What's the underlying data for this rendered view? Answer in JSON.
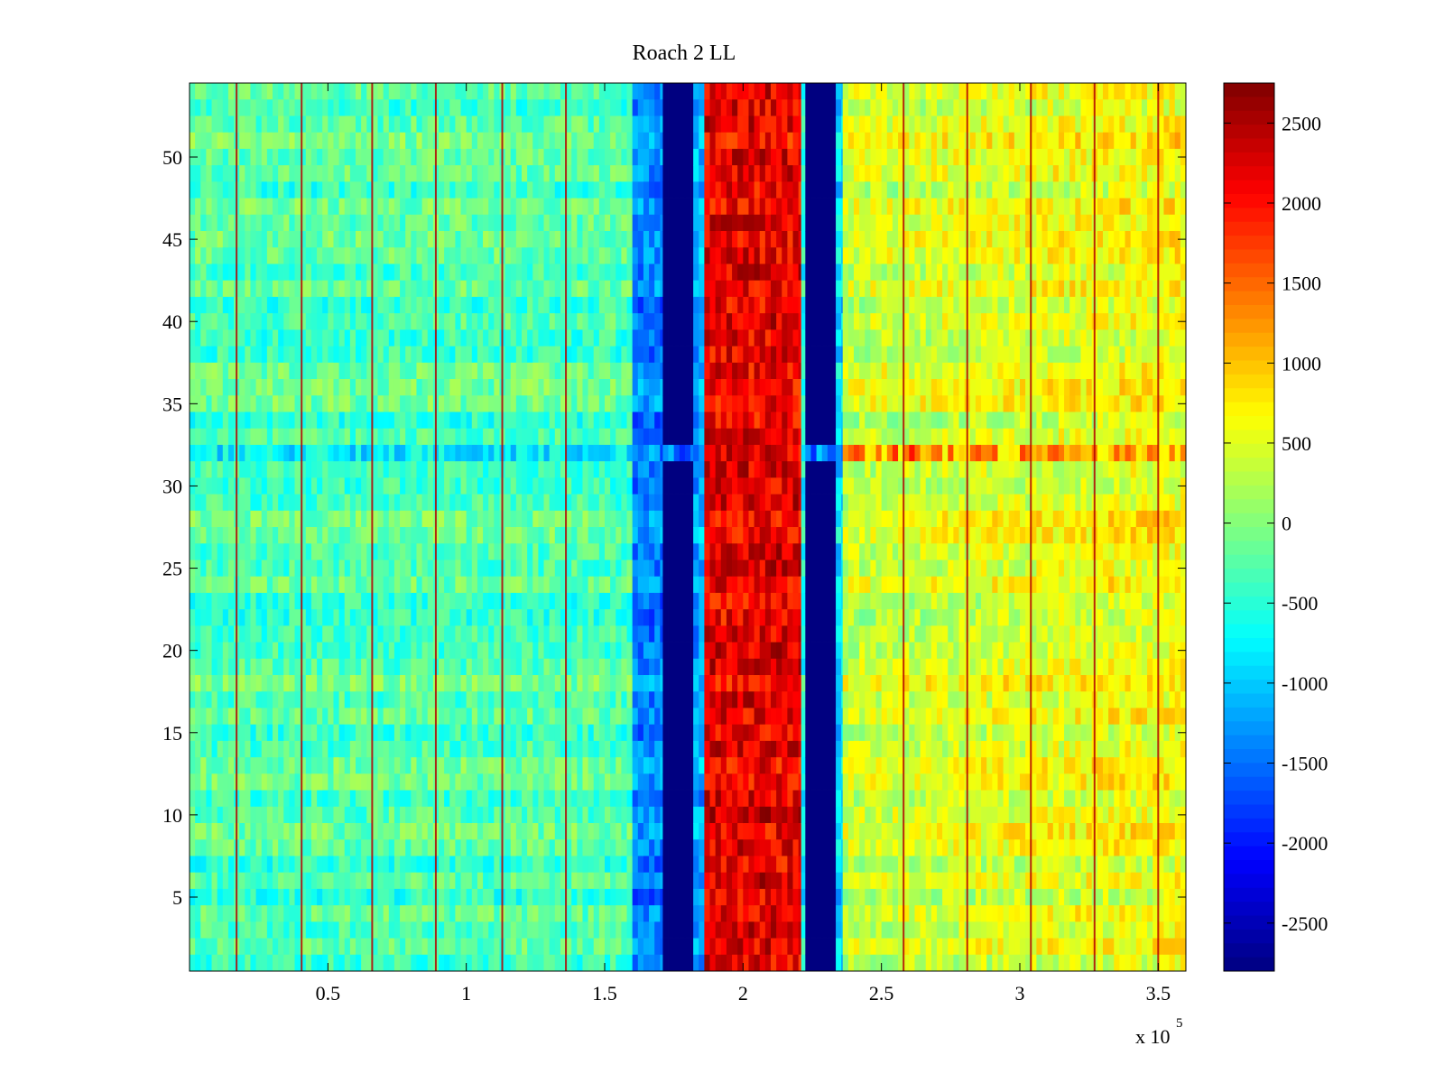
{
  "chart_data": {
    "type": "heatmap",
    "title": "Roach 2 LL",
    "xlabel": "",
    "ylabel": "",
    "x_range": [
      0,
      360000
    ],
    "y_range": [
      0.5,
      54.5
    ],
    "x_ticks": [
      {
        "value": 50000,
        "label": "0.5"
      },
      {
        "value": 100000,
        "label": "1"
      },
      {
        "value": 150000,
        "label": "1.5"
      },
      {
        "value": 200000,
        "label": "2"
      },
      {
        "value": 250000,
        "label": "2.5"
      },
      {
        "value": 300000,
        "label": "3"
      },
      {
        "value": 350000,
        "label": "3.5"
      }
    ],
    "x_multiplier_label": "x 10",
    "x_multiplier_exponent": "5",
    "y_ticks": [
      {
        "value": 5,
        "label": "5"
      },
      {
        "value": 10,
        "label": "10"
      },
      {
        "value": 15,
        "label": "15"
      },
      {
        "value": 20,
        "label": "20"
      },
      {
        "value": 25,
        "label": "25"
      },
      {
        "value": 30,
        "label": "30"
      },
      {
        "value": 35,
        "label": "35"
      },
      {
        "value": 40,
        "label": "40"
      },
      {
        "value": 45,
        "label": "45"
      },
      {
        "value": 50,
        "label": "50"
      }
    ],
    "colormap": "jet",
    "color_range": [
      -2800,
      2750
    ],
    "colorbar_ticks": [
      {
        "value": 2500,
        "label": "2500"
      },
      {
        "value": 2000,
        "label": "2000"
      },
      {
        "value": 1500,
        "label": "1500"
      },
      {
        "value": 1000,
        "label": "1000"
      },
      {
        "value": 500,
        "label": "500"
      },
      {
        "value": 0,
        "label": "0"
      },
      {
        "value": -500,
        "label": "-500"
      },
      {
        "value": -1000,
        "label": "-1000"
      },
      {
        "value": -1500,
        "label": "-1500"
      },
      {
        "value": -2000,
        "label": "-2000"
      },
      {
        "value": -2500,
        "label": "-2500"
      }
    ],
    "rows": 54,
    "bands": [
      {
        "x_start": 0,
        "x_end": 160000,
        "level": -300
      },
      {
        "x_start": 160000,
        "x_end": 171000,
        "level": -1400
      },
      {
        "x_start": 171000,
        "x_end": 182000,
        "level": -2800
      },
      {
        "x_start": 182000,
        "x_end": 186000,
        "level": -1200
      },
      {
        "x_start": 186000,
        "x_end": 221000,
        "level": 2500
      },
      {
        "x_start": 221000,
        "x_end": 222500,
        "level": -600
      },
      {
        "x_start": 222500,
        "x_end": 233500,
        "level": -2800
      },
      {
        "x_start": 233500,
        "x_end": 236000,
        "level": -900
      },
      {
        "x_start": 236000,
        "x_end": 360000,
        "level": 350
      }
    ],
    "spikes_x": [
      17000,
      40500,
      66000,
      89000,
      113000,
      136000,
      258000,
      281000,
      304000,
      327000,
      350000
    ],
    "anomalous_row": 32
  }
}
